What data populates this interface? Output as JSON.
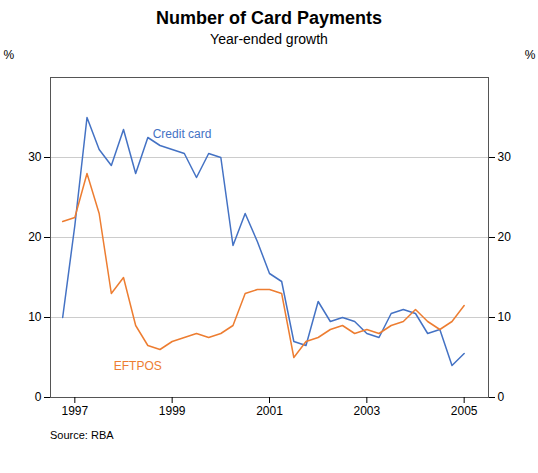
{
  "chart_data": {
    "type": "line",
    "title": "Number of Card Payments",
    "subtitle": "Year-ended growth",
    "ylabel": "%",
    "y2label": "%",
    "source": "Source: RBA",
    "x": [
      1996.75,
      1997.0,
      1997.25,
      1997.5,
      1997.75,
      1998.0,
      1998.25,
      1998.5,
      1998.75,
      1999.0,
      1999.25,
      1999.5,
      1999.75,
      2000.0,
      2000.25,
      2000.5,
      2000.75,
      2001.0,
      2001.25,
      2001.5,
      2001.75,
      2002.0,
      2002.25,
      2002.5,
      2002.75,
      2003.0,
      2003.25,
      2003.5,
      2003.75,
      2004.0,
      2004.25,
      2004.5,
      2004.75,
      2005.0
    ],
    "xlim": [
      1996.5,
      2005.5
    ],
    "xticks": [
      1997,
      1999,
      2001,
      2003,
      2005
    ],
    "ylim": [
      0,
      40
    ],
    "yticks": [
      0,
      10,
      20,
      30
    ],
    "y2lim": [
      0,
      40
    ],
    "y2ticks": [
      0,
      10,
      20,
      30
    ],
    "grid": true,
    "series": [
      {
        "name": "Credit card",
        "color": "#4472C4",
        "values": [
          10.0,
          21.5,
          35.0,
          31.0,
          29.0,
          33.5,
          28.0,
          32.5,
          31.5,
          31.0,
          30.5,
          27.5,
          30.5,
          30.0,
          19.0,
          23.0,
          19.5,
          15.5,
          14.5,
          7.0,
          6.5,
          12.0,
          9.5,
          10.0,
          9.5,
          8.0,
          7.5,
          10.5,
          11.0,
          10.5,
          8.0,
          8.5,
          4.0,
          5.5
        ]
      },
      {
        "name": "EFTPOS",
        "color": "#ED7D31",
        "values": [
          22.0,
          22.5,
          28.0,
          23.0,
          13.0,
          15.0,
          9.0,
          6.5,
          6.0,
          7.0,
          7.5,
          8.0,
          7.5,
          8.0,
          9.0,
          13.0,
          13.5,
          13.5,
          13.0,
          5.0,
          7.0,
          7.5,
          8.5,
          9.0,
          8.0,
          8.5,
          8.0,
          9.0,
          9.5,
          11.0,
          9.5,
          8.5,
          9.5,
          11.5
        ]
      }
    ],
    "annotations": [
      {
        "text": "Credit card",
        "x": 1998.6,
        "y": 32.5,
        "color": "#4472C4"
      },
      {
        "text": "EFTPOS",
        "x": 1997.8,
        "y": 3.5,
        "color": "#ED7D31"
      }
    ]
  }
}
